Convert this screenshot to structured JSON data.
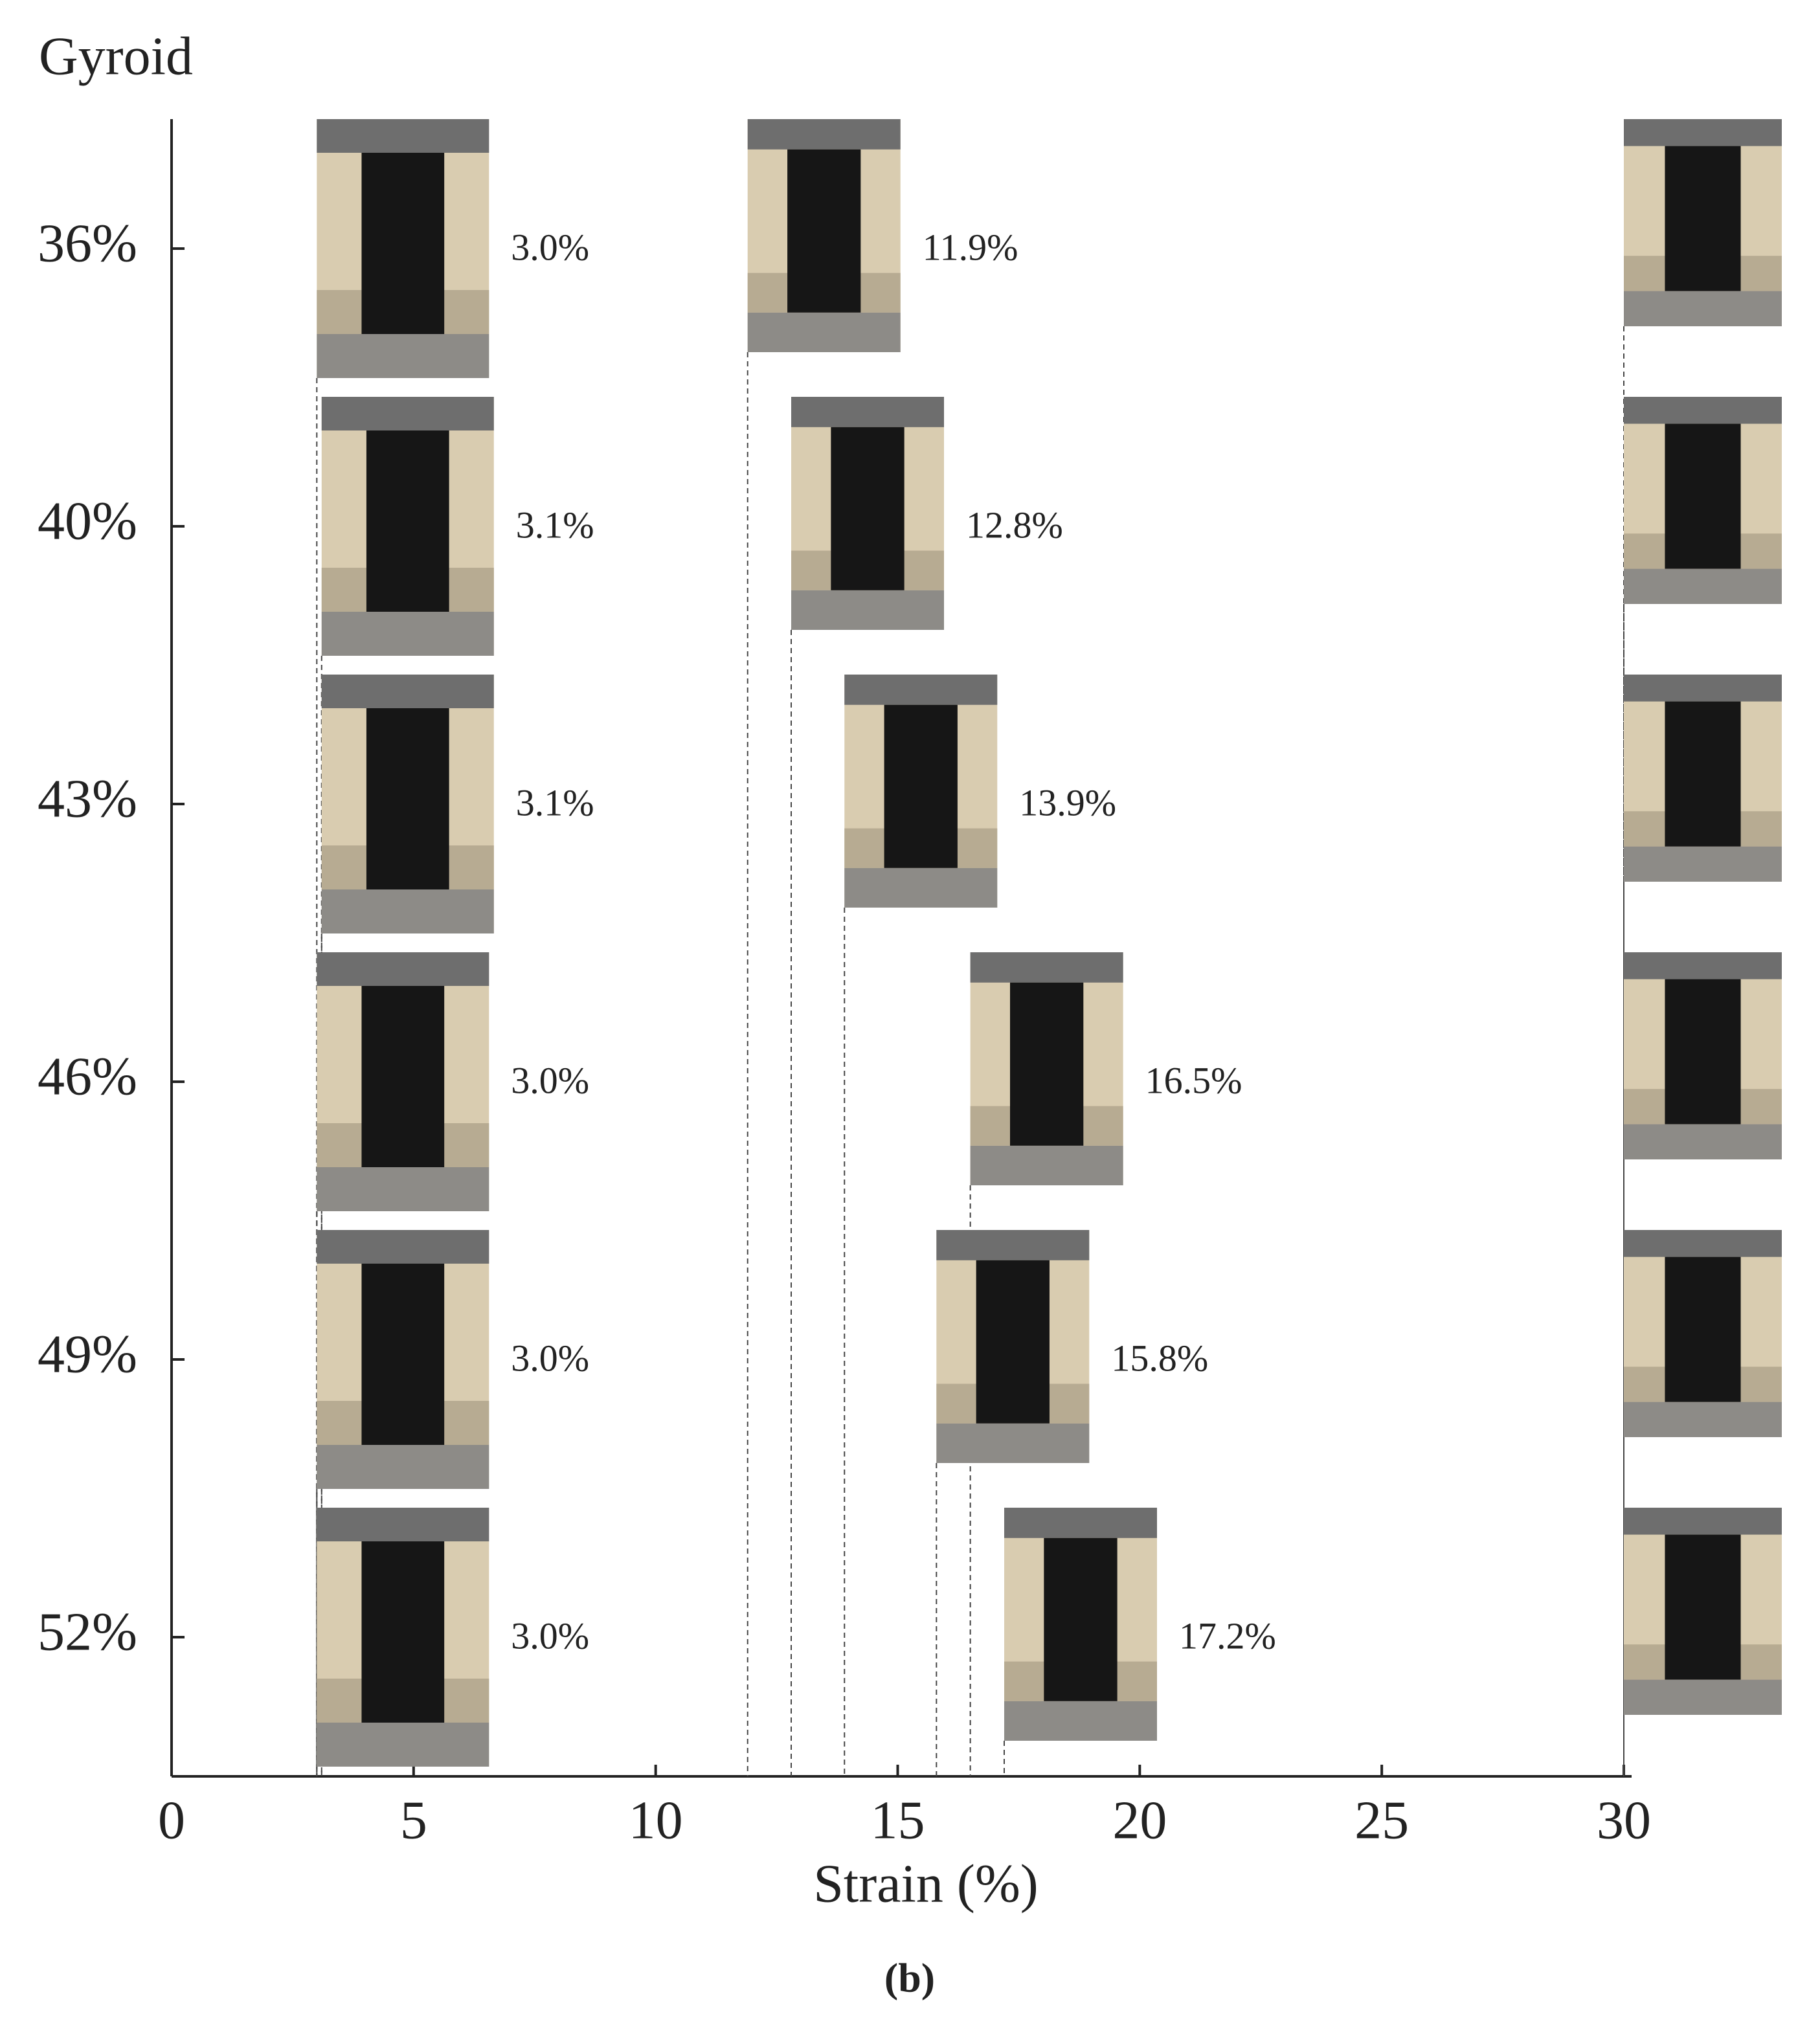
{
  "chart_data": {
    "type": "scatter",
    "title": "Gyroid",
    "xlabel": "Strain (%)",
    "caption": "(b)",
    "categories": [
      "36%",
      "40%",
      "43%",
      "46%",
      "49%",
      "52%"
    ],
    "series": [
      {
        "values": [
          3.0,
          3.1,
          3.1,
          3.0,
          3.0,
          3.0
        ],
        "value_labels": [
          "3.0%",
          "3.1%",
          "3.1%",
          "3.0%",
          "3.0%",
          "3.0%"
        ]
      },
      {
        "values": [
          11.9,
          12.8,
          13.9,
          16.5,
          15.8,
          17.2
        ],
        "value_labels": [
          "11.9%",
          "12.8%",
          "13.9%",
          "16.5%",
          "15.8%",
          "17.2%"
        ]
      },
      {
        "values": [
          30,
          30,
          30,
          30,
          30,
          30
        ]
      }
    ],
    "xlim": [
      0,
      30
    ],
    "xticks": [
      0,
      5,
      10,
      15,
      20,
      25,
      30
    ]
  }
}
